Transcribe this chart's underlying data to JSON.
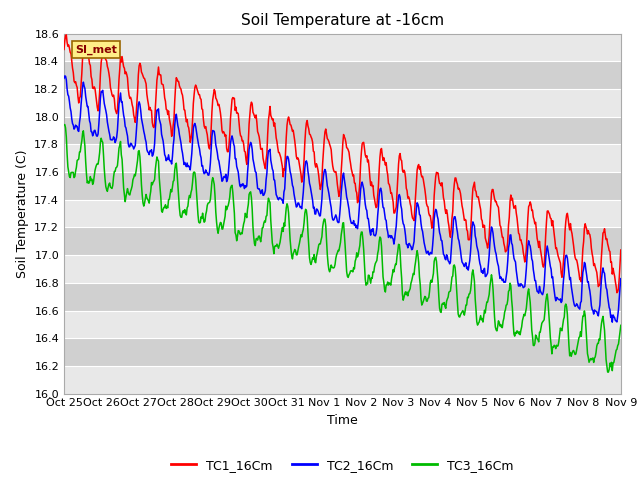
{
  "title": "Soil Temperature at -16cm",
  "xlabel": "Time",
  "ylabel": "Soil Temperature (C)",
  "ylim": [
    16.0,
    18.6
  ],
  "yticks": [
    16.0,
    16.2,
    16.4,
    16.6,
    16.8,
    17.0,
    17.2,
    17.4,
    17.6,
    17.8,
    18.0,
    18.2,
    18.4,
    18.6
  ],
  "xtick_labels": [
    "Oct 25",
    "Oct 26",
    "Oct 27",
    "Oct 28",
    "Oct 29",
    "Oct 30",
    "Oct 31",
    "Nov 1",
    "Nov 2",
    "Nov 3",
    "Nov 4",
    "Nov 5",
    "Nov 6",
    "Nov 7",
    "Nov 8",
    "Nov 9"
  ],
  "legend_labels": [
    "TC1_16Cm",
    "TC2_16Cm",
    "TC3_16Cm"
  ],
  "line_colors": [
    "#ff0000",
    "#0000ff",
    "#00bb00"
  ],
  "watermark_text": "SI_met",
  "watermark_bg": "#ffee88",
  "watermark_border": "#996600",
  "bg_color": "#ffffff",
  "plot_bg_color": "#d8d8d8",
  "band_light": "#e8e8e8",
  "band_dark": "#d0d0d0",
  "grid_color": "#ffffff",
  "title_fontsize": 11,
  "axis_fontsize": 9,
  "tick_fontsize": 8,
  "legend_fontsize": 9
}
